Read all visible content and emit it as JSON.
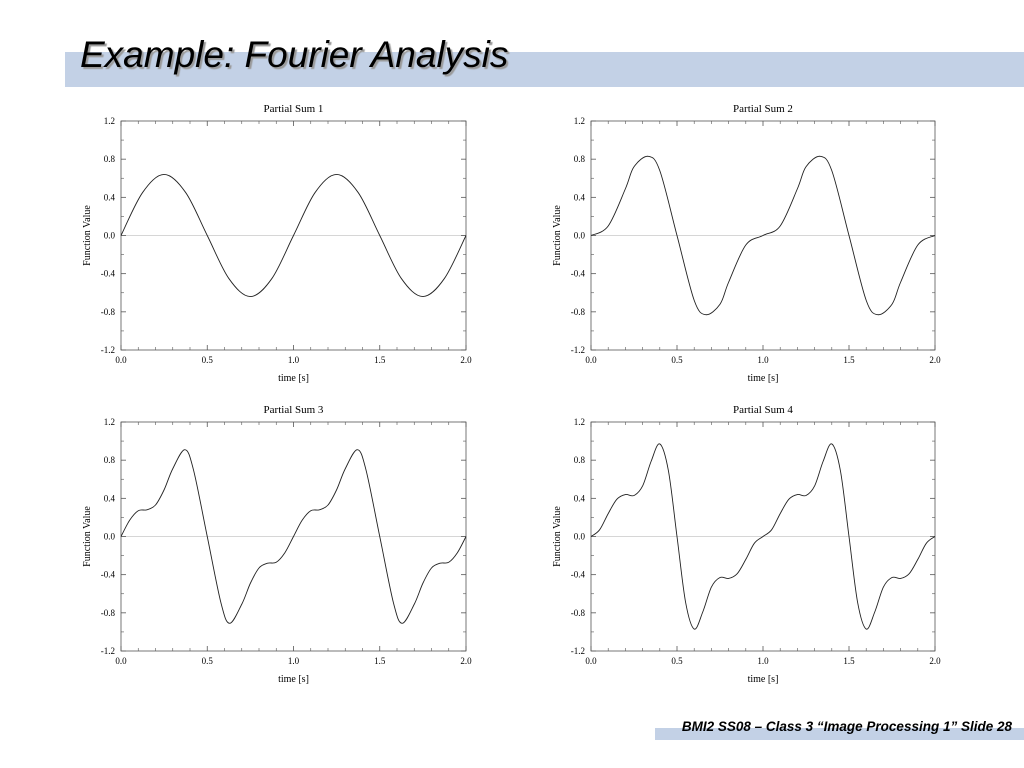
{
  "slide": {
    "title": "Example: Fourier Analysis",
    "footer": "BMI2 SS08 – Class 3 “Image Processing 1” Slide 28"
  },
  "chart_data": [
    {
      "type": "line",
      "title": "Partial Sum 1",
      "xlabel": "time [s]",
      "ylabel": "Function Value",
      "xlim": [
        0,
        2
      ],
      "ylim": [
        -1.2,
        1.2
      ],
      "xticks": [
        "0.0",
        "0.5",
        "1.0",
        "1.5",
        "2.0"
      ],
      "yticks": [
        "1.2",
        "0.8",
        "0.4",
        "0.0",
        "-0.4",
        "-0.8",
        "-1.2"
      ],
      "zero_line": true,
      "series": [
        {
          "x": [
            0,
            0.125,
            0.25,
            0.375,
            0.5,
            0.625,
            0.75,
            0.875,
            1.0,
            1.125,
            1.25,
            1.375,
            1.5,
            1.625,
            1.75,
            1.875,
            2.0
          ],
          "y": [
            0,
            0.45,
            0.64,
            0.45,
            0,
            -0.45,
            -0.64,
            -0.45,
            0,
            0.45,
            0.64,
            0.45,
            0,
            -0.45,
            -0.64,
            -0.45,
            0
          ]
        }
      ]
    },
    {
      "type": "line",
      "title": "Partial Sum 2",
      "xlabel": "time [s]",
      "ylabel": "Function Value",
      "xlim": [
        0,
        2
      ],
      "ylim": [
        -1.2,
        1.2
      ],
      "xticks": [
        "0.0",
        "0.5",
        "1.0",
        "1.5",
        "2.0"
      ],
      "yticks": [
        "1.2",
        "0.8",
        "0.4",
        "0.0",
        "-0.4",
        "-0.8",
        "-1.2"
      ],
      "zero_line": true,
      "series": [
        {
          "x": [
            0,
            0.1,
            0.2,
            0.25,
            0.333,
            0.4,
            0.5,
            0.6,
            0.667,
            0.75,
            0.8,
            0.9,
            1.0,
            1.1,
            1.2,
            1.25,
            1.333,
            1.4,
            1.5,
            1.6,
            1.667,
            1.75,
            1.8,
            1.9,
            2.0
          ],
          "y": [
            0,
            0.1,
            0.49,
            0.72,
            0.83,
            0.68,
            0,
            -0.68,
            -0.83,
            -0.72,
            -0.49,
            -0.1,
            0,
            0.1,
            0.49,
            0.72,
            0.83,
            0.68,
            0,
            -0.68,
            -0.83,
            -0.72,
            -0.49,
            -0.1,
            0
          ]
        }
      ]
    },
    {
      "type": "line",
      "title": "Partial Sum 3",
      "xlabel": "time [s]",
      "ylabel": "Function Value",
      "xlim": [
        0,
        2
      ],
      "ylim": [
        -1.2,
        1.2
      ],
      "xticks": [
        "0.0",
        "0.5",
        "1.0",
        "1.5",
        "2.0"
      ],
      "yticks": [
        "1.2",
        "0.8",
        "0.4",
        "0.0",
        "-0.4",
        "-0.8",
        "-1.2"
      ],
      "zero_line": true,
      "series": [
        {
          "x": [
            0,
            0.05,
            0.1,
            0.15,
            0.2,
            0.25,
            0.3,
            0.37,
            0.42,
            0.5,
            0.58,
            0.63,
            0.7,
            0.75,
            0.8,
            0.85,
            0.9,
            0.95,
            1.0,
            1.05,
            1.1,
            1.15,
            1.2,
            1.25,
            1.3,
            1.37,
            1.42,
            1.5,
            1.58,
            1.63,
            1.7,
            1.75,
            1.8,
            1.85,
            1.9,
            1.95,
            2.0
          ],
          "y": [
            0,
            0.17,
            0.27,
            0.28,
            0.33,
            0.49,
            0.71,
            0.91,
            0.7,
            0,
            -0.7,
            -0.91,
            -0.71,
            -0.49,
            -0.33,
            -0.28,
            -0.27,
            -0.17,
            0,
            0.17,
            0.27,
            0.28,
            0.33,
            0.49,
            0.71,
            0.91,
            0.7,
            0,
            -0.7,
            -0.91,
            -0.71,
            -0.49,
            -0.33,
            -0.28,
            -0.27,
            -0.17,
            0
          ]
        }
      ]
    },
    {
      "type": "line",
      "title": "Partial Sum 4",
      "xlabel": "time [s]",
      "ylabel": "Function Value",
      "xlim": [
        0,
        2
      ],
      "ylim": [
        -1.2,
        1.2
      ],
      "xticks": [
        "0.0",
        "0.5",
        "1.0",
        "1.5",
        "2.0"
      ],
      "yticks": [
        "1.2",
        "0.8",
        "0.4",
        "0.0",
        "-0.4",
        "-0.8",
        "-1.2"
      ],
      "zero_line": true,
      "series": [
        {
          "x": [
            0,
            0.05,
            0.1,
            0.15,
            0.2,
            0.25,
            0.3,
            0.35,
            0.4,
            0.45,
            0.5,
            0.55,
            0.6,
            0.65,
            0.7,
            0.75,
            0.8,
            0.85,
            0.9,
            0.95,
            1.0,
            1.05,
            1.1,
            1.15,
            1.2,
            1.25,
            1.3,
            1.35,
            1.4,
            1.45,
            1.5,
            1.55,
            1.6,
            1.65,
            1.7,
            1.75,
            1.8,
            1.85,
            1.9,
            1.95,
            2.0
          ],
          "y": [
            0,
            0.07,
            0.24,
            0.39,
            0.44,
            0.43,
            0.53,
            0.79,
            0.97,
            0.69,
            0,
            -0.69,
            -0.97,
            -0.79,
            -0.53,
            -0.43,
            -0.44,
            -0.39,
            -0.24,
            -0.07,
            0,
            0.07,
            0.24,
            0.39,
            0.44,
            0.43,
            0.53,
            0.79,
            0.97,
            0.69,
            0,
            -0.69,
            -0.97,
            -0.79,
            -0.53,
            -0.43,
            -0.44,
            -0.39,
            -0.24,
            -0.07,
            0
          ]
        }
      ]
    }
  ]
}
